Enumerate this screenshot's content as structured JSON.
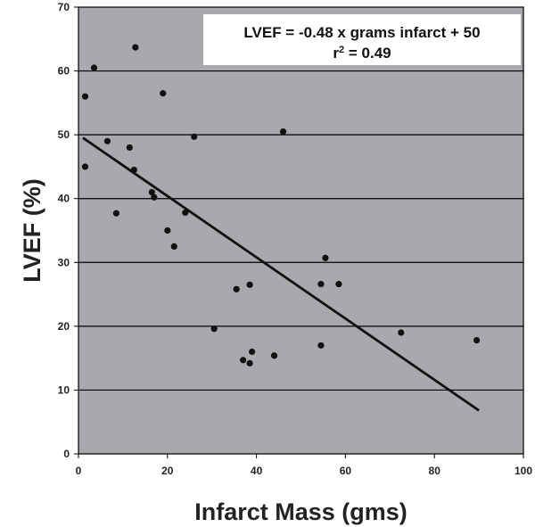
{
  "chart_data": {
    "type": "scatter",
    "title": "",
    "xlabel": "Infarct Mass (gms)",
    "ylabel": "LVEF (%)",
    "xlim": [
      0,
      100
    ],
    "ylim": [
      0,
      70
    ],
    "x_ticks": [
      "0",
      "20",
      "40",
      "60",
      "80",
      "100"
    ],
    "y_ticks": [
      "0",
      "10",
      "20",
      "30",
      "40",
      "50",
      "60",
      "70"
    ],
    "grid": "horizontal",
    "annotation": {
      "line1": "LVEF = -0.48 x grams infarct + 50",
      "line2_prefix": "r",
      "line2_sup": "2",
      "line2_suffix": " = 0.49"
    },
    "regression": {
      "slope": -0.48,
      "intercept": 50,
      "x_range": [
        1,
        90
      ]
    },
    "points": [
      {
        "x": 1.5,
        "y": 56
      },
      {
        "x": 1.5,
        "y": 45
      },
      {
        "x": 3.5,
        "y": 60.5
      },
      {
        "x": 6.5,
        "y": 49
      },
      {
        "x": 8.5,
        "y": 37.7
      },
      {
        "x": 11.5,
        "y": 48
      },
      {
        "x": 12.5,
        "y": 44.5
      },
      {
        "x": 12.8,
        "y": 63.7
      },
      {
        "x": 16.5,
        "y": 41
      },
      {
        "x": 17,
        "y": 40.2
      },
      {
        "x": 19,
        "y": 56.5
      },
      {
        "x": 20,
        "y": 35
      },
      {
        "x": 21.5,
        "y": 32.5
      },
      {
        "x": 24,
        "y": 37.8
      },
      {
        "x": 26,
        "y": 49.7
      },
      {
        "x": 30.5,
        "y": 19.6
      },
      {
        "x": 35.5,
        "y": 25.8
      },
      {
        "x": 37,
        "y": 14.7
      },
      {
        "x": 38.5,
        "y": 26.5
      },
      {
        "x": 38.5,
        "y": 14.2
      },
      {
        "x": 39,
        "y": 16
      },
      {
        "x": 44,
        "y": 15.4
      },
      {
        "x": 46,
        "y": 50.5
      },
      {
        "x": 54.5,
        "y": 26.6
      },
      {
        "x": 54.5,
        "y": 17
      },
      {
        "x": 55.5,
        "y": 30.7
      },
      {
        "x": 58.5,
        "y": 26.6
      },
      {
        "x": 72.5,
        "y": 19
      },
      {
        "x": 89.5,
        "y": 17.8
      }
    ],
    "colors": {
      "plot_background": "#a7a9ac",
      "gridline": "#000000",
      "marker": "#111111",
      "regression_line": "#111111",
      "annotation_box": "#ffffff"
    }
  }
}
